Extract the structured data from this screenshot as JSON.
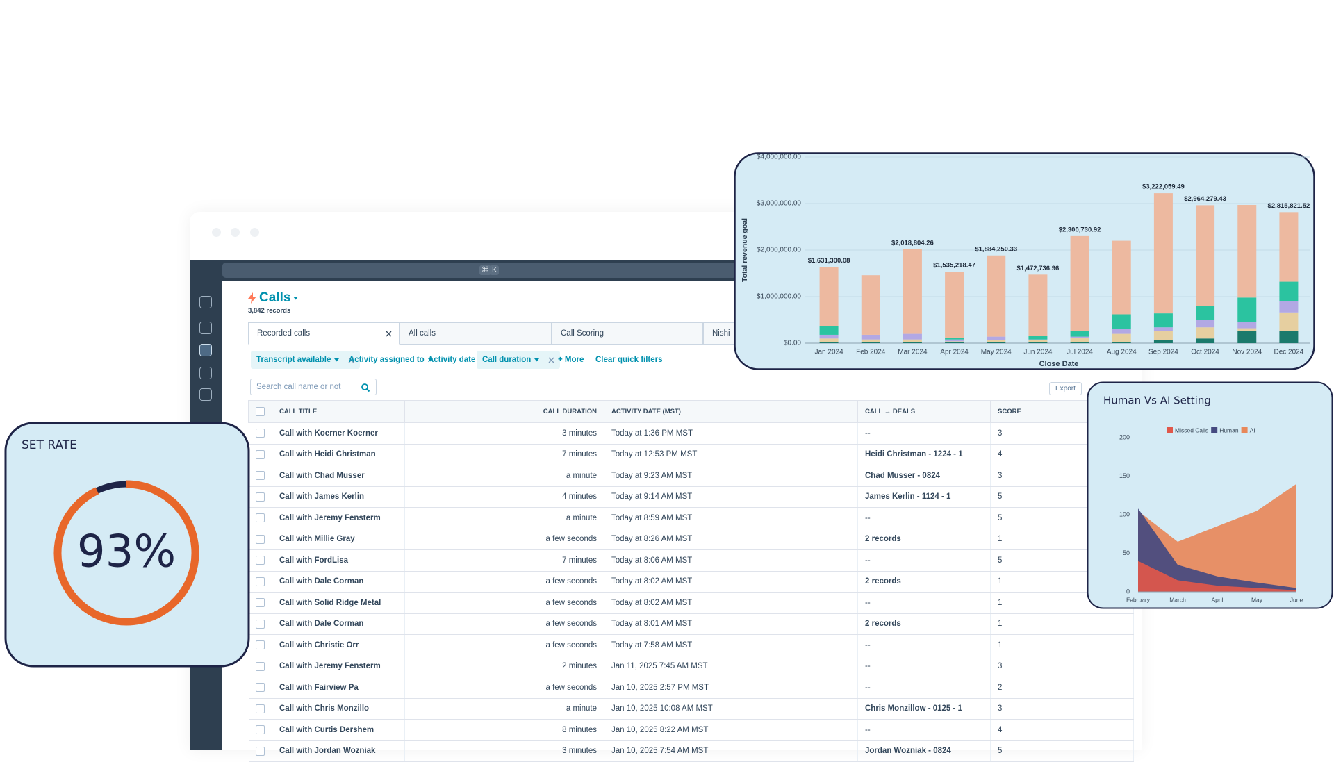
{
  "app": {
    "shortcut": [
      "⌘",
      "K"
    ],
    "new_tab": "+",
    "title": "Calls",
    "record_count": "3,842 records",
    "tabs": [
      "Recorded calls",
      "All calls",
      "Call Scoring",
      "Nishi"
    ],
    "filters": [
      "Transcript available",
      "Activity assigned to",
      "Activity date",
      "Call duration"
    ],
    "more": "+ More",
    "clear": "Clear quick filters",
    "search_placeholder": "Search call name or not",
    "export": "Export",
    "table": {
      "columns": [
        "CALL TITLE",
        "CALL DURATION",
        "ACTIVITY DATE (MST)",
        "CALL → DEALS",
        "SCORE"
      ],
      "rows": [
        [
          "Call with Koerner Koerner",
          "3 minutes",
          "Today at 1:36 PM MST",
          "--",
          3
        ],
        [
          "Call with Heidi Christman",
          "7 minutes",
          "Today at 12:53 PM MST",
          "Heidi Christman - 1224 - 1",
          4
        ],
        [
          "Call with Chad Musser",
          "a minute",
          "Today at 9:23 AM MST",
          "Chad Musser - 0824",
          3
        ],
        [
          "Call with James Kerlin",
          "4 minutes",
          "Today at 9:14 AM MST",
          "James Kerlin - 1124 - 1",
          5
        ],
        [
          "Call with Jeremy Fensterm",
          "a minute",
          "Today at 8:59 AM MST",
          "--",
          5
        ],
        [
          "Call with Millie Gray",
          "a few seconds",
          "Today at 8:26 AM MST",
          "2 records",
          1
        ],
        [
          "Call with FordLisa",
          "7 minutes",
          "Today at 8:06 AM MST",
          "--",
          5
        ],
        [
          "Call with Dale Corman",
          "a few seconds",
          "Today at 8:02 AM MST",
          "2 records",
          1
        ],
        [
          "Call with Solid Ridge Metal",
          "a few seconds",
          "Today at 8:02 AM MST",
          "--",
          1
        ],
        [
          "Call with Dale Corman",
          "a few seconds",
          "Today at 8:01 AM MST",
          "2 records",
          1
        ],
        [
          "Call with Christie Orr",
          "a few seconds",
          "Today at 7:58 AM MST",
          "--",
          1
        ],
        [
          "Call with Jeremy Fensterm",
          "2 minutes",
          "Jan 11, 2025 7:45 AM MST",
          "--",
          3
        ],
        [
          "Call with Fairview Pa",
          "a few seconds",
          "Jan 10, 2025 2:57 PM MST",
          "--",
          2
        ],
        [
          "Call with Chris Monzillo",
          "a minute",
          "Jan 10, 2025 10:08 AM MST",
          "Chris Monzillow - 0125 - 1",
          3
        ],
        [
          "Call with Curtis Dershem",
          "8 minutes",
          "Jan 10, 2025 8:22 AM MST",
          "--",
          4
        ],
        [
          "Call with Jordan Wozniak",
          "3 minutes",
          "Jan 10, 2025 7:54 AM MST",
          "Jordan Wozniak - 0824",
          5
        ]
      ]
    }
  },
  "chart_data": [
    {
      "type": "stacked_bar",
      "y_label": "Total revenue goal",
      "x_label": "Close Date",
      "categories": [
        "Jan 2024",
        "Feb 2024",
        "Mar 2024",
        "Apr 2024",
        "May 2024",
        "Jun 2024",
        "Jul 2024",
        "Aug 2024",
        "Sep 2024",
        "Oct 2024",
        "Nov 2024",
        "Dec 2024"
      ],
      "series": [
        {
          "color": "#1b7a6c",
          "values": [
            20000,
            20000,
            20000,
            20000,
            20000,
            20000,
            20000,
            20000,
            60000,
            100000,
            260000,
            260000
          ]
        },
        {
          "color": "#e6cfa0",
          "values": [
            80000,
            60000,
            60000,
            20000,
            40000,
            40000,
            100000,
            180000,
            200000,
            240000,
            60000,
            400000
          ]
        },
        {
          "color": "#b2a8e4",
          "values": [
            80000,
            100000,
            120000,
            40000,
            80000,
            20000,
            20000,
            100000,
            80000,
            160000,
            140000,
            240000
          ]
        },
        {
          "color": "#2bc3a0",
          "values": [
            180000,
            0,
            0,
            40000,
            0,
            80000,
            120000,
            320000,
            300000,
            300000,
            520000,
            420000
          ]
        },
        {
          "color": "#edb9a0",
          "values": [
            1271300.08,
            1280000,
            1818804.26,
            1415218.47,
            1744250.33,
            1312736.96,
            2040730.92,
            1580000,
            2582059.49,
            2164279.43,
            1990000,
            1495821.52
          ]
        }
      ],
      "totals": [
        1631300.08,
        null,
        2018804.26,
        1535218.47,
        1884250.33,
        1472736.96,
        2300730.92,
        null,
        3222059.49,
        2964279.43,
        null,
        2815821.52
      ],
      "total_labels": [
        "$1,631,300.08",
        null,
        "$2,018,804.26",
        "$1,535,218.47",
        "$1,884,250.33",
        "$1,472,736.96",
        "$2,300,730.92",
        null,
        "$3,222,059.49",
        "$2,964,279.43",
        null,
        "$2,815,821.52"
      ],
      "ylim": [
        0,
        4000000
      ],
      "yticks": [
        {
          "value": 0,
          "label": "$0.00"
        },
        {
          "value": 1000000,
          "label": "$1,000,000.00"
        },
        {
          "value": 2000000,
          "label": "$2,000,000.00"
        },
        {
          "value": 3000000,
          "label": "$3,000,000.00"
        },
        {
          "value": 4000000,
          "label": "$4,000,000.00"
        }
      ],
      "grid": true
    },
    {
      "type": "area",
      "title": "Human Vs AI Setting",
      "categories": [
        "February",
        "March",
        "April",
        "May",
        "June"
      ],
      "series": [
        {
          "name": "Missed Calls",
          "color": "#e0574a",
          "values": [
            40,
            15,
            8,
            5,
            2
          ]
        },
        {
          "name": "Human",
          "color": "#454a80",
          "values": [
            108,
            35,
            20,
            12,
            5
          ]
        },
        {
          "name": "AI",
          "color": "#e8885a",
          "values": [
            105,
            65,
            85,
            105,
            140
          ]
        }
      ],
      "ylim": [
        0,
        200
      ],
      "yticks": [
        0,
        50,
        100,
        150,
        200
      ],
      "grid": false
    },
    {
      "type": "gauge",
      "title": "SET RATE",
      "values": [
        93
      ],
      "value_labels": [
        "93%"
      ],
      "ylim": [
        0,
        100
      ],
      "color": "#e8672a",
      "track_color": "#1e2447"
    }
  ]
}
